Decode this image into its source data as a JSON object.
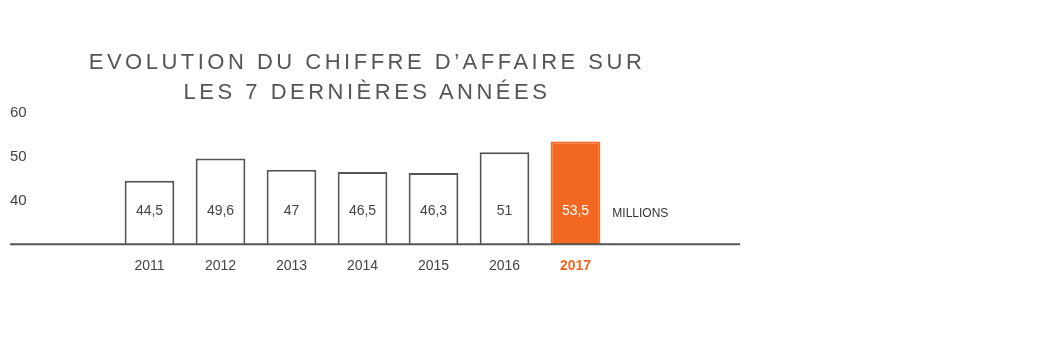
{
  "chart_data": {
    "type": "bar",
    "title": "EVOLUTION DU CHIFFRE D’AFFAIRE SUR LES 7 DERNIÈRES ANNÉES",
    "categories": [
      "2011",
      "2012",
      "2013",
      "2014",
      "2015",
      "2016",
      "2017"
    ],
    "values": [
      44.5,
      49.6,
      47,
      46.5,
      46.3,
      51,
      53.5
    ],
    "value_labels": [
      "44,5",
      "49,6",
      "47",
      "46,5",
      "46,3",
      "51",
      "53,5"
    ],
    "colors": [
      "#ffffff",
      "#ffffff",
      "#ffffff",
      "#ffffff",
      "#ffffff",
      "#ffffff",
      "#f26722"
    ],
    "ylim": [
      30,
      60
    ],
    "yticks": [
      40,
      50,
      60
    ],
    "grid": false,
    "legend": false,
    "annotations": [
      "MILLIONS"
    ]
  }
}
